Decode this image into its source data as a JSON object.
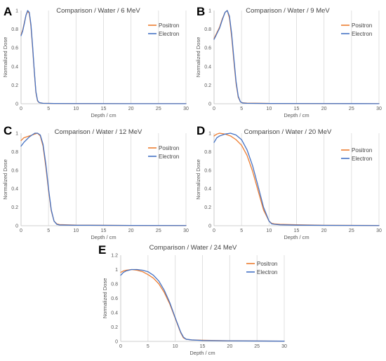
{
  "chart_data": [
    {
      "panel": "A",
      "type": "line",
      "title": "Comparison  / Water / 6 MeV",
      "xlabel": "Depth / cm",
      "ylabel": "Normalized Dose",
      "xlim": [
        0,
        30
      ],
      "ylim": [
        0,
        1
      ],
      "xticks": [
        0,
        5,
        10,
        15,
        20,
        25,
        30
      ],
      "yticks": [
        0,
        0.2,
        0.4,
        0.6,
        0.8,
        1
      ],
      "ytick_labels": [
        "0",
        "0.2",
        "0.4",
        "0.6",
        "0.8",
        "1"
      ],
      "grid": "vertical",
      "legend_position": "top-right",
      "series": [
        {
          "name": "Positron",
          "color": "#ed7d31",
          "x": [
            0,
            0.3,
            0.6,
            0.9,
            1.2,
            1.5,
            1.8,
            2.1,
            2.4,
            2.7,
            3.0,
            3.3,
            4,
            6,
            10,
            20,
            30
          ],
          "y": [
            0.74,
            0.79,
            0.87,
            0.95,
            0.99,
            0.97,
            0.83,
            0.6,
            0.35,
            0.12,
            0.03,
            0.012,
            0.005,
            0.003,
            0.002,
            0.001,
            0.001
          ]
        },
        {
          "name": "Electron",
          "color": "#4472c4",
          "x": [
            0,
            0.3,
            0.6,
            0.9,
            1.2,
            1.5,
            1.8,
            2.1,
            2.4,
            2.7,
            3.0,
            3.3,
            4,
            6,
            10,
            20,
            30
          ],
          "y": [
            0.73,
            0.78,
            0.86,
            0.95,
            1.0,
            0.98,
            0.85,
            0.62,
            0.36,
            0.13,
            0.035,
            0.012,
            0.005,
            0.003,
            0.002,
            0.001,
            0.001
          ]
        }
      ]
    },
    {
      "panel": "B",
      "type": "line",
      "title": "Comparison  / Water / 9 MeV",
      "xlabel": "Depth / cm",
      "ylabel": "Normalized Dose",
      "xlim": [
        0,
        30
      ],
      "ylim": [
        0,
        1
      ],
      "xticks": [
        0,
        5,
        10,
        15,
        20,
        25,
        30
      ],
      "yticks": [
        0,
        0.2,
        0.4,
        0.6,
        0.8,
        1
      ],
      "ytick_labels": [
        "0",
        "0.2",
        "0.4",
        "0.6",
        "0.8",
        "1"
      ],
      "grid": "vertical",
      "legend_position": "top-right",
      "series": [
        {
          "name": "Positron",
          "color": "#ed7d31",
          "x": [
            0,
            0.5,
            1.0,
            1.5,
            2.0,
            2.4,
            2.8,
            3.2,
            3.6,
            4.0,
            4.4,
            4.8,
            5.2,
            6,
            10,
            20,
            30
          ],
          "y": [
            0.7,
            0.76,
            0.82,
            0.91,
            0.98,
            1.0,
            0.92,
            0.72,
            0.46,
            0.22,
            0.07,
            0.02,
            0.01,
            0.006,
            0.003,
            0.002,
            0.001
          ]
        },
        {
          "name": "Electron",
          "color": "#4472c4",
          "x": [
            0,
            0.5,
            1.0,
            1.5,
            2.0,
            2.4,
            2.8,
            3.2,
            3.6,
            4.0,
            4.4,
            4.8,
            5.2,
            6,
            10,
            20,
            30
          ],
          "y": [
            0.69,
            0.75,
            0.81,
            0.9,
            0.98,
            1.0,
            0.94,
            0.75,
            0.49,
            0.24,
            0.08,
            0.02,
            0.008,
            0.005,
            0.003,
            0.002,
            0.001
          ]
        }
      ]
    },
    {
      "panel": "C",
      "type": "line",
      "title": "Comparison  / Water / 12 MeV",
      "xlabel": "Depth / cm",
      "ylabel": "Normalized Dose",
      "xlim": [
        0,
        30
      ],
      "ylim": [
        0,
        1
      ],
      "xticks": [
        0,
        5,
        10,
        15,
        20,
        25,
        30
      ],
      "yticks": [
        0,
        0.2,
        0.4,
        0.6,
        0.8,
        1
      ],
      "ytick_labels": [
        "0",
        "0.2",
        "0.4",
        "0.6",
        "0.8",
        "1"
      ],
      "grid": "vertical",
      "legend_position": "top-right",
      "series": [
        {
          "name": "Positron",
          "color": "#ed7d31",
          "x": [
            0,
            0.5,
            1.0,
            1.5,
            2.0,
            2.5,
            3.0,
            3.5,
            4.0,
            4.5,
            5.0,
            5.5,
            6.0,
            6.5,
            7,
            10,
            20,
            30
          ],
          "y": [
            0.92,
            0.95,
            0.96,
            0.97,
            0.98,
            0.99,
            1.0,
            0.97,
            0.86,
            0.64,
            0.38,
            0.16,
            0.05,
            0.02,
            0.012,
            0.006,
            0.003,
            0.002
          ]
        },
        {
          "name": "Electron",
          "color": "#4472c4",
          "x": [
            0,
            0.5,
            1.0,
            1.5,
            2.0,
            2.5,
            3.0,
            3.5,
            4.0,
            4.5,
            5.0,
            5.5,
            6.0,
            6.5,
            7,
            10,
            20,
            30
          ],
          "y": [
            0.86,
            0.9,
            0.93,
            0.96,
            0.98,
            1.0,
            1.0,
            0.98,
            0.88,
            0.67,
            0.4,
            0.17,
            0.05,
            0.015,
            0.008,
            0.005,
            0.003,
            0.002
          ]
        }
      ]
    },
    {
      "panel": "D",
      "type": "line",
      "title": "Comparison  / Water / 20 MeV",
      "xlabel": "Depth / cm",
      "ylabel": "Normalized Dose",
      "xlim": [
        0,
        30
      ],
      "ylim": [
        0,
        1
      ],
      "xticks": [
        0,
        5,
        10,
        15,
        20,
        25,
        30
      ],
      "yticks": [
        0,
        0.2,
        0.4,
        0.6,
        0.8,
        1
      ],
      "ytick_labels": [
        "0",
        "0.2",
        "0.4",
        "0.6",
        "0.8",
        "1"
      ],
      "grid": "vertical",
      "legend_position": "top-right",
      "series": [
        {
          "name": "Positron",
          "color": "#ed7d31",
          "x": [
            0,
            0.5,
            1,
            2,
            3,
            4,
            5,
            6,
            7,
            8,
            9,
            10,
            10.5,
            11,
            12,
            15,
            20,
            30
          ],
          "y": [
            0.97,
            0.99,
            1.0,
            0.99,
            0.97,
            0.93,
            0.87,
            0.76,
            0.59,
            0.38,
            0.17,
            0.05,
            0.025,
            0.02,
            0.015,
            0.01,
            0.005,
            0.003
          ]
        },
        {
          "name": "Electron",
          "color": "#4472c4",
          "x": [
            0,
            0.5,
            1,
            2,
            3,
            4,
            5,
            6,
            7,
            8,
            9,
            10,
            10.5,
            11,
            12,
            15,
            20,
            30
          ],
          "y": [
            0.9,
            0.95,
            0.97,
            0.99,
            1.0,
            0.98,
            0.93,
            0.82,
            0.65,
            0.43,
            0.2,
            0.05,
            0.02,
            0.015,
            0.01,
            0.006,
            0.004,
            0.002
          ]
        }
      ]
    },
    {
      "panel": "E",
      "type": "line",
      "title": "Comparison  / Water / 24 MeV",
      "xlabel": "Depth / cm",
      "ylabel": "Normalized Dose",
      "xlim": [
        0,
        30
      ],
      "ylim": [
        0,
        1.2
      ],
      "xticks": [
        0,
        5,
        10,
        15,
        20,
        25,
        30
      ],
      "yticks": [
        0,
        0.2,
        0.4,
        0.6,
        0.8,
        1,
        1.2
      ],
      "ytick_labels": [
        "0",
        "0.2",
        "0.4",
        "0.6",
        "0.8",
        "1",
        "1.2"
      ],
      "grid": "vertical",
      "legend_position": "top-right",
      "series": [
        {
          "name": "Positron",
          "color": "#ed7d31",
          "x": [
            0,
            0.5,
            1,
            2,
            3,
            4,
            5,
            6,
            7,
            8,
            9,
            10,
            11,
            11.5,
            12,
            13,
            15,
            20,
            30
          ],
          "y": [
            0.96,
            0.98,
            0.99,
            1.0,
            0.99,
            0.97,
            0.93,
            0.88,
            0.8,
            0.68,
            0.52,
            0.32,
            0.12,
            0.05,
            0.03,
            0.02,
            0.015,
            0.008,
            0.004
          ]
        },
        {
          "name": "Electron",
          "color": "#4472c4",
          "x": [
            0,
            0.5,
            1,
            2,
            3,
            4,
            5,
            6,
            7,
            8,
            9,
            10,
            11,
            11.5,
            12,
            13,
            15,
            20,
            30
          ],
          "y": [
            0.92,
            0.96,
            0.98,
            1.0,
            1.0,
            0.99,
            0.97,
            0.92,
            0.84,
            0.71,
            0.54,
            0.33,
            0.13,
            0.06,
            0.03,
            0.02,
            0.012,
            0.007,
            0.003
          ]
        }
      ]
    }
  ]
}
